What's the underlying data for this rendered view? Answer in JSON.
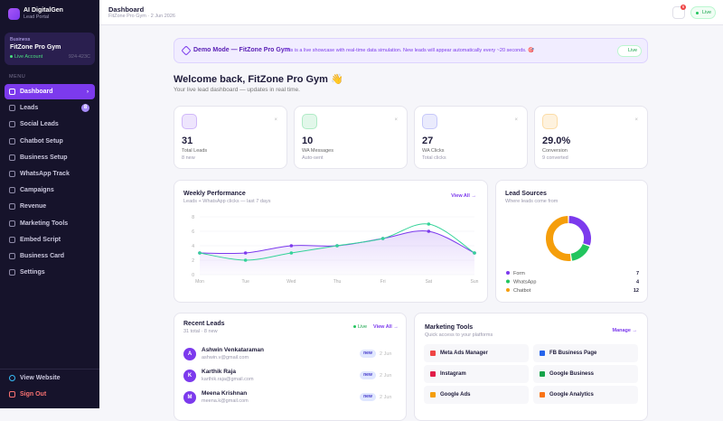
{
  "sidebar": {
    "brand": "AI DigitalGen",
    "subtitle": "Lead Portal",
    "business": {
      "label": "Business",
      "name": "FitZone Pro Gym",
      "status": "Live Account",
      "id": "924-423C"
    },
    "menu_label": "MENU",
    "menu": [
      {
        "label": "Dashboard"
      },
      {
        "label": "Leads",
        "badge": 8
      },
      {
        "label": "Social Leads"
      },
      {
        "label": "Chatbot Setup"
      },
      {
        "label": "Business Setup"
      },
      {
        "label": "WhatsApp Track"
      },
      {
        "label": "Campaigns"
      },
      {
        "label": "Revenue"
      },
      {
        "label": "Marketing Tools"
      },
      {
        "label": "Embed Script"
      },
      {
        "label": "Business Card"
      },
      {
        "label": "Settings"
      }
    ],
    "footer": [
      "View Website",
      "Sign Out"
    ]
  },
  "header": {
    "title": "Dashboard",
    "subtitle": "FitZone Pro Gym · 2 Jun 2026",
    "notifications": 6,
    "status": "Live"
  },
  "banner": {
    "title": "Demo Mode — FitZone Pro Gym",
    "text": "This is a live showcase with real-time data simulation. New leads will appear automatically every ~20 seconds. 🎯",
    "status": "Live"
  },
  "welcome": {
    "title": "Welcome back, FitZone Pro Gym 👋",
    "subtitle": "Your live lead dashboard — updates in real time."
  },
  "stats": [
    {
      "value": "31",
      "label": "Total Leads",
      "note": "8 new",
      "color": "#7c3aed"
    },
    {
      "value": "10",
      "label": "WA Messages",
      "note": "Auto-sent",
      "color": "#22c55e"
    },
    {
      "value": "27",
      "label": "WA Clicks",
      "note": "Total clicks",
      "color": "#6366f1"
    },
    {
      "value": "29.0%",
      "label": "Conversion",
      "note": "9 converted",
      "color": "#f59e0b"
    }
  ],
  "weekly": {
    "title": "Weekly Performance",
    "subtitle": "Leads + WhatsApp clicks — last 7 days",
    "link": "View All →",
    "chart": {
      "type": "line",
      "categories": [
        "Mon",
        "Tue",
        "Wed",
        "Thu",
        "Fri",
        "Sat",
        "Sun"
      ],
      "ylim": [
        0,
        8
      ],
      "yticks": [
        0,
        2,
        4,
        6,
        8
      ],
      "series": [
        {
          "color": "#7c3aed",
          "values": [
            3,
            3,
            4,
            4,
            5,
            6,
            3
          ]
        },
        {
          "color": "#34d399",
          "values": [
            3,
            2,
            3,
            4,
            5,
            7,
            3
          ]
        }
      ]
    }
  },
  "sources": {
    "title": "Lead Sources",
    "subtitle": "Where leads come from",
    "chart": {
      "type": "pie",
      "categories": [
        "Form",
        "WhatsApp",
        "Chatbot"
      ],
      "values": [
        7,
        4,
        12
      ],
      "colors": [
        "#7c3aed",
        "#22c55e",
        "#f59e0b"
      ]
    }
  },
  "recent": {
    "title": "Recent Leads",
    "subtitle": "31 total · 8 new",
    "status": "Live",
    "link": "View All →",
    "leads": [
      {
        "initial": "A",
        "name": "Ashwin Venkataraman",
        "email": "ashwin.v@gmail.com",
        "tag": "new",
        "date": "2 Jun"
      },
      {
        "initial": "K",
        "name": "Karthik Raja",
        "email": "karthik.raja@gmail.com",
        "tag": "new",
        "date": "2 Jun"
      },
      {
        "initial": "M",
        "name": "Meena Krishnan",
        "email": "meena.k@gmail.com",
        "tag": "new",
        "date": "2 Jun"
      }
    ]
  },
  "tools": {
    "title": "Marketing Tools",
    "subtitle": "Quick access to your platforms",
    "link": "Manage →",
    "items": [
      "Meta Ads Manager",
      "FB Business Page",
      "Instagram",
      "Google Business",
      "Google Ads",
      "Google Analytics"
    ]
  }
}
